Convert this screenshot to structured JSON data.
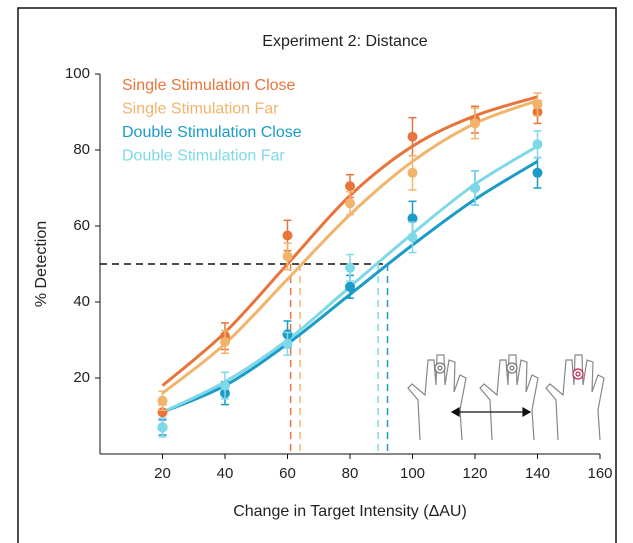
{
  "chart_data": {
    "type": "line",
    "title": "Experiment 2: Distance",
    "x_label": "Change in Target Intensity (ΔAU)",
    "y_label": "% Detection",
    "x": [
      20,
      40,
      60,
      80,
      100,
      120,
      140
    ],
    "xlim": [
      0,
      160
    ],
    "xticks": [
      20,
      40,
      60,
      80,
      100,
      120,
      140,
      160
    ],
    "ylim": [
      0,
      100
    ],
    "yticks": [
      20,
      40,
      60,
      80,
      100
    ],
    "threshold": 50,
    "series": [
      {
        "name": "Single Stimulation Close",
        "color": "#e8743b",
        "values": [
          11,
          31,
          57.5,
          70.5,
          83.5,
          88,
          90
        ],
        "errors": [
          2,
          3.5,
          4,
          3,
          5,
          3.5,
          3
        ],
        "fit": [
          18,
          32,
          50,
          68,
          81,
          89,
          94
        ],
        "threshold_x": 61
      },
      {
        "name": "Single Stimulation Far",
        "color": "#f2b36b",
        "values": [
          14,
          29.5,
          52,
          66,
          74,
          87,
          92
        ],
        "errors": [
          2.5,
          3,
          3.5,
          3,
          4.5,
          4,
          3
        ],
        "fit": [
          16,
          29,
          46,
          63,
          77,
          87,
          93
        ],
        "threshold_x": 64
      },
      {
        "name": "Double Stimulation Close",
        "color": "#1a9bc8",
        "values": [
          7,
          16,
          31.5,
          44,
          62,
          70,
          74
        ],
        "errors": [
          2,
          3,
          3.5,
          3,
          4.5,
          4.5,
          4
        ],
        "fit": [
          11,
          18,
          29,
          42,
          55,
          67,
          77
        ],
        "threshold_x": 92
      },
      {
        "name": "Double Stimulation Far",
        "color": "#7fd8e8",
        "values": [
          7,
          18,
          29,
          49,
          57,
          70,
          81.5
        ],
        "errors": [
          2.5,
          3.5,
          3,
          3.5,
          4,
          4.5,
          3.5
        ],
        "fit": [
          11,
          19,
          30,
          44,
          58,
          71,
          81
        ],
        "threshold_x": 89
      }
    ]
  }
}
